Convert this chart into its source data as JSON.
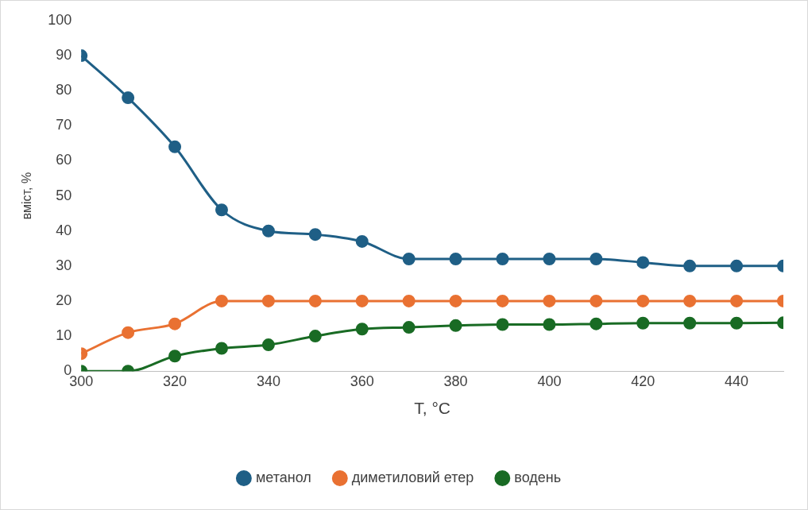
{
  "chart_data": {
    "type": "line",
    "xlabel": "T, °C",
    "ylabel": "вміст, %",
    "x": [
      300,
      310,
      320,
      330,
      340,
      350,
      360,
      370,
      380,
      390,
      400,
      410,
      420,
      430,
      440,
      450
    ],
    "xlim": [
      300,
      450
    ],
    "xticks": [
      300,
      320,
      340,
      360,
      380,
      400,
      420,
      440
    ],
    "ylim": [
      0,
      100
    ],
    "yticks": [
      0,
      10,
      20,
      30,
      40,
      50,
      60,
      70,
      80,
      90,
      100
    ],
    "grid": false,
    "legend": "bottom",
    "marker": "circle",
    "line_style": "solid",
    "series": [
      {
        "name": "метанол",
        "color": "#1f5f86",
        "values": [
          90,
          78,
          64,
          46,
          40,
          39,
          37,
          32,
          32,
          32,
          32,
          32,
          31,
          30,
          30,
          30
        ]
      },
      {
        "name": "диметиловий етер",
        "color": "#e97132",
        "values": [
          5,
          11,
          13.5,
          20,
          20,
          20,
          20,
          20,
          20,
          20,
          20,
          20,
          20,
          20,
          20,
          20
        ]
      },
      {
        "name": "водень",
        "color": "#196b24",
        "values": [
          0,
          0,
          4.3,
          6.5,
          7.5,
          10,
          12,
          12.5,
          13,
          13.3,
          13.3,
          13.5,
          13.7,
          13.7,
          13.7,
          13.8
        ]
      }
    ]
  }
}
